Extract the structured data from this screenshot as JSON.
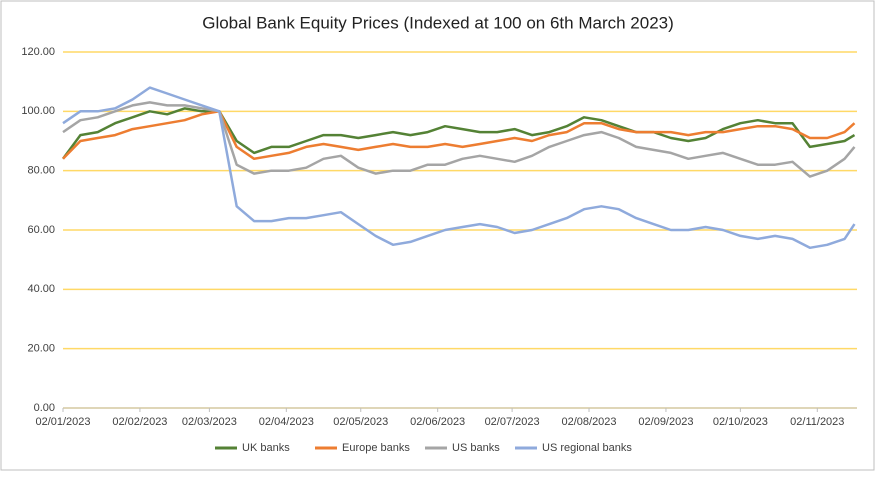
{
  "chart_data": {
    "type": "line",
    "title": "Global Bank Equity Prices (Indexed at 100 on 6th March 2023)",
    "x": [
      "2023-01-02",
      "2023-01-09",
      "2023-01-16",
      "2023-01-23",
      "2023-01-30",
      "2023-02-06",
      "2023-02-13",
      "2023-02-20",
      "2023-02-27",
      "2023-03-06",
      "2023-03-13",
      "2023-03-20",
      "2023-03-27",
      "2023-04-03",
      "2023-04-10",
      "2023-04-17",
      "2023-04-24",
      "2023-05-01",
      "2023-05-08",
      "2023-05-15",
      "2023-05-22",
      "2023-05-29",
      "2023-06-05",
      "2023-06-12",
      "2023-06-19",
      "2023-06-26",
      "2023-07-03",
      "2023-07-10",
      "2023-07-17",
      "2023-07-24",
      "2023-07-31",
      "2023-08-07",
      "2023-08-14",
      "2023-08-21",
      "2023-08-28",
      "2023-09-04",
      "2023-09-11",
      "2023-09-18",
      "2023-09-25",
      "2023-10-02",
      "2023-10-09",
      "2023-10-16",
      "2023-10-23",
      "2023-10-30",
      "2023-11-06",
      "2023-11-13",
      "2023-11-17"
    ],
    "series": [
      {
        "name": "UK banks",
        "color": "#548235",
        "values": [
          84,
          92,
          93,
          96,
          98,
          100,
          99,
          101,
          100,
          100,
          90,
          86,
          88,
          88,
          90,
          92,
          92,
          91,
          92,
          93,
          92,
          93,
          95,
          94,
          93,
          93,
          94,
          92,
          93,
          95,
          98,
          97,
          95,
          93,
          93,
          91,
          90,
          91,
          94,
          96,
          97,
          96,
          96,
          88,
          89,
          90,
          92
        ]
      },
      {
        "name": "Europe banks",
        "color": "#ED7D31",
        "values": [
          84,
          90,
          91,
          92,
          94,
          95,
          96,
          97,
          99,
          100,
          88,
          84,
          85,
          86,
          88,
          89,
          88,
          87,
          88,
          89,
          88,
          88,
          89,
          88,
          89,
          90,
          91,
          90,
          92,
          93,
          96,
          96,
          94,
          93,
          93,
          93,
          92,
          93,
          93,
          94,
          95,
          95,
          94,
          91,
          91,
          93,
          96
        ]
      },
      {
        "name": "US banks",
        "color": "#A5A5A5",
        "values": [
          93,
          97,
          98,
          100,
          102,
          103,
          102,
          102,
          101,
          100,
          82,
          79,
          80,
          80,
          81,
          84,
          85,
          81,
          79,
          80,
          80,
          82,
          82,
          84,
          85,
          84,
          83,
          85,
          88,
          90,
          92,
          93,
          91,
          88,
          87,
          86,
          84,
          85,
          86,
          84,
          82,
          82,
          83,
          78,
          80,
          84,
          88
        ]
      },
      {
        "name": "US regional banks",
        "color": "#8FAADC",
        "values": [
          96,
          100,
          100,
          101,
          104,
          108,
          106,
          104,
          102,
          100,
          68,
          63,
          63,
          64,
          64,
          65,
          66,
          62,
          58,
          55,
          56,
          58,
          60,
          61,
          62,
          61,
          59,
          60,
          62,
          64,
          67,
          68,
          67,
          64,
          62,
          60,
          60,
          61,
          60,
          58,
          57,
          58,
          57,
          54,
          55,
          57,
          62
        ]
      }
    ],
    "xlim": [
      "2023-01-02",
      "2023-11-18"
    ],
    "xticks": [
      {
        "value": "2023-01-02",
        "label": "02/01/2023"
      },
      {
        "value": "2023-02-02",
        "label": "02/02/2023"
      },
      {
        "value": "2023-03-02",
        "label": "02/03/2023"
      },
      {
        "value": "2023-04-02",
        "label": "02/04/2023"
      },
      {
        "value": "2023-05-02",
        "label": "02/05/2023"
      },
      {
        "value": "2023-06-02",
        "label": "02/06/2023"
      },
      {
        "value": "2023-07-02",
        "label": "02/07/2023"
      },
      {
        "value": "2023-08-02",
        "label": "02/08/2023"
      },
      {
        "value": "2023-09-02",
        "label": "02/09/2023"
      },
      {
        "value": "2023-10-02",
        "label": "02/10/2023"
      },
      {
        "value": "2023-11-02",
        "label": "02/11/2023"
      }
    ],
    "ylim": [
      0,
      120
    ],
    "yticks": [
      {
        "value": 0,
        "label": "0.00"
      },
      {
        "value": 20,
        "label": "20.00"
      },
      {
        "value": 40,
        "label": "40.00"
      },
      {
        "value": 60,
        "label": "60.00"
      },
      {
        "value": 80,
        "label": "80.00"
      },
      {
        "value": 100,
        "label": "100.00"
      },
      {
        "value": 120,
        "label": "120.00"
      }
    ],
    "grid": true,
    "grid_color": "#FFD966",
    "legend": "bottom"
  }
}
